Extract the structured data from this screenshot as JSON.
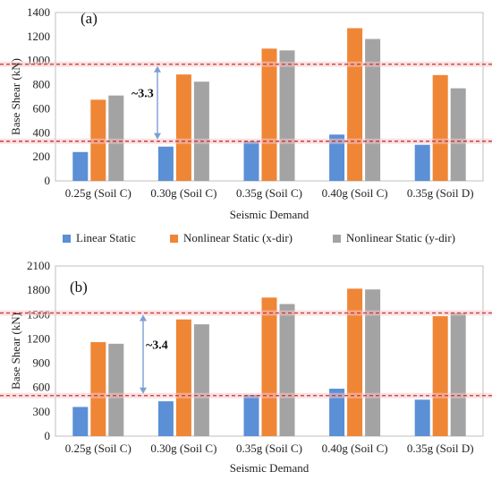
{
  "colors": {
    "linear": "#5b8fd6",
    "nl_x": "#ef8636",
    "nl_y": "#a3a3a3",
    "ref_line": "#c0392b",
    "ref_glow": "#f7c6cc",
    "arrow": "#7b9fd4"
  },
  "legend": {
    "items": [
      {
        "label": "Linear Static",
        "color": "#5b8fd6"
      },
      {
        "label": "Nonlinear Static (x-dir)",
        "color": "#ef8636"
      },
      {
        "label": "Nonlinear Static (y-dir)",
        "color": "#a3a3a3"
      }
    ]
  },
  "chart_data": [
    {
      "type": "bar",
      "panel_label": "(a)",
      "title": "",
      "xlabel": "Seismic Demand",
      "ylabel": "Base Shear (kN)",
      "ylim": [
        0,
        1400
      ],
      "yticks": [
        0,
        200,
        400,
        600,
        800,
        1000,
        1200,
        1400
      ],
      "categories": [
        "0.25g (Soil C)",
        "0.30g (Soil C)",
        "0.35g (Soil C)",
        "0.40g (Soil C)",
        "0.35g (Soil D)"
      ],
      "series": [
        {
          "name": "Linear Static",
          "values": [
            240,
            285,
            330,
            385,
            300
          ]
        },
        {
          "name": "Nonlinear Static (x-dir)",
          "values": [
            675,
            885,
            1100,
            1270,
            880
          ]
        },
        {
          "name": "Nonlinear Static (y-dir)",
          "values": [
            710,
            825,
            1085,
            1180,
            770
          ]
        }
      ],
      "reference_lines": [
        330,
        970
      ],
      "annotation": "~3.3",
      "grid": false
    },
    {
      "type": "bar",
      "panel_label": "(b)",
      "title": "",
      "xlabel": "Seismic Demand",
      "ylabel": "Base Shear (kN)",
      "ylim": [
        0,
        2100
      ],
      "yticks": [
        0,
        300,
        600,
        900,
        1200,
        1500,
        1800,
        2100
      ],
      "categories": [
        "0.25g (Soil C)",
        "0.30g (Soil C)",
        "0.35g (Soil C)",
        "0.40g (Soil C)",
        "0.35g (Soil D)"
      ],
      "series": [
        {
          "name": "Linear Static",
          "values": [
            360,
            430,
            510,
            585,
            450
          ]
        },
        {
          "name": "Nonlinear Static (x-dir)",
          "values": [
            1160,
            1440,
            1710,
            1820,
            1480
          ]
        },
        {
          "name": "Nonlinear Static (y-dir)",
          "values": [
            1140,
            1380,
            1630,
            1810,
            1520
          ]
        }
      ],
      "reference_lines": [
        500,
        1520
      ],
      "annotation": "~3.4",
      "grid": false
    }
  ]
}
